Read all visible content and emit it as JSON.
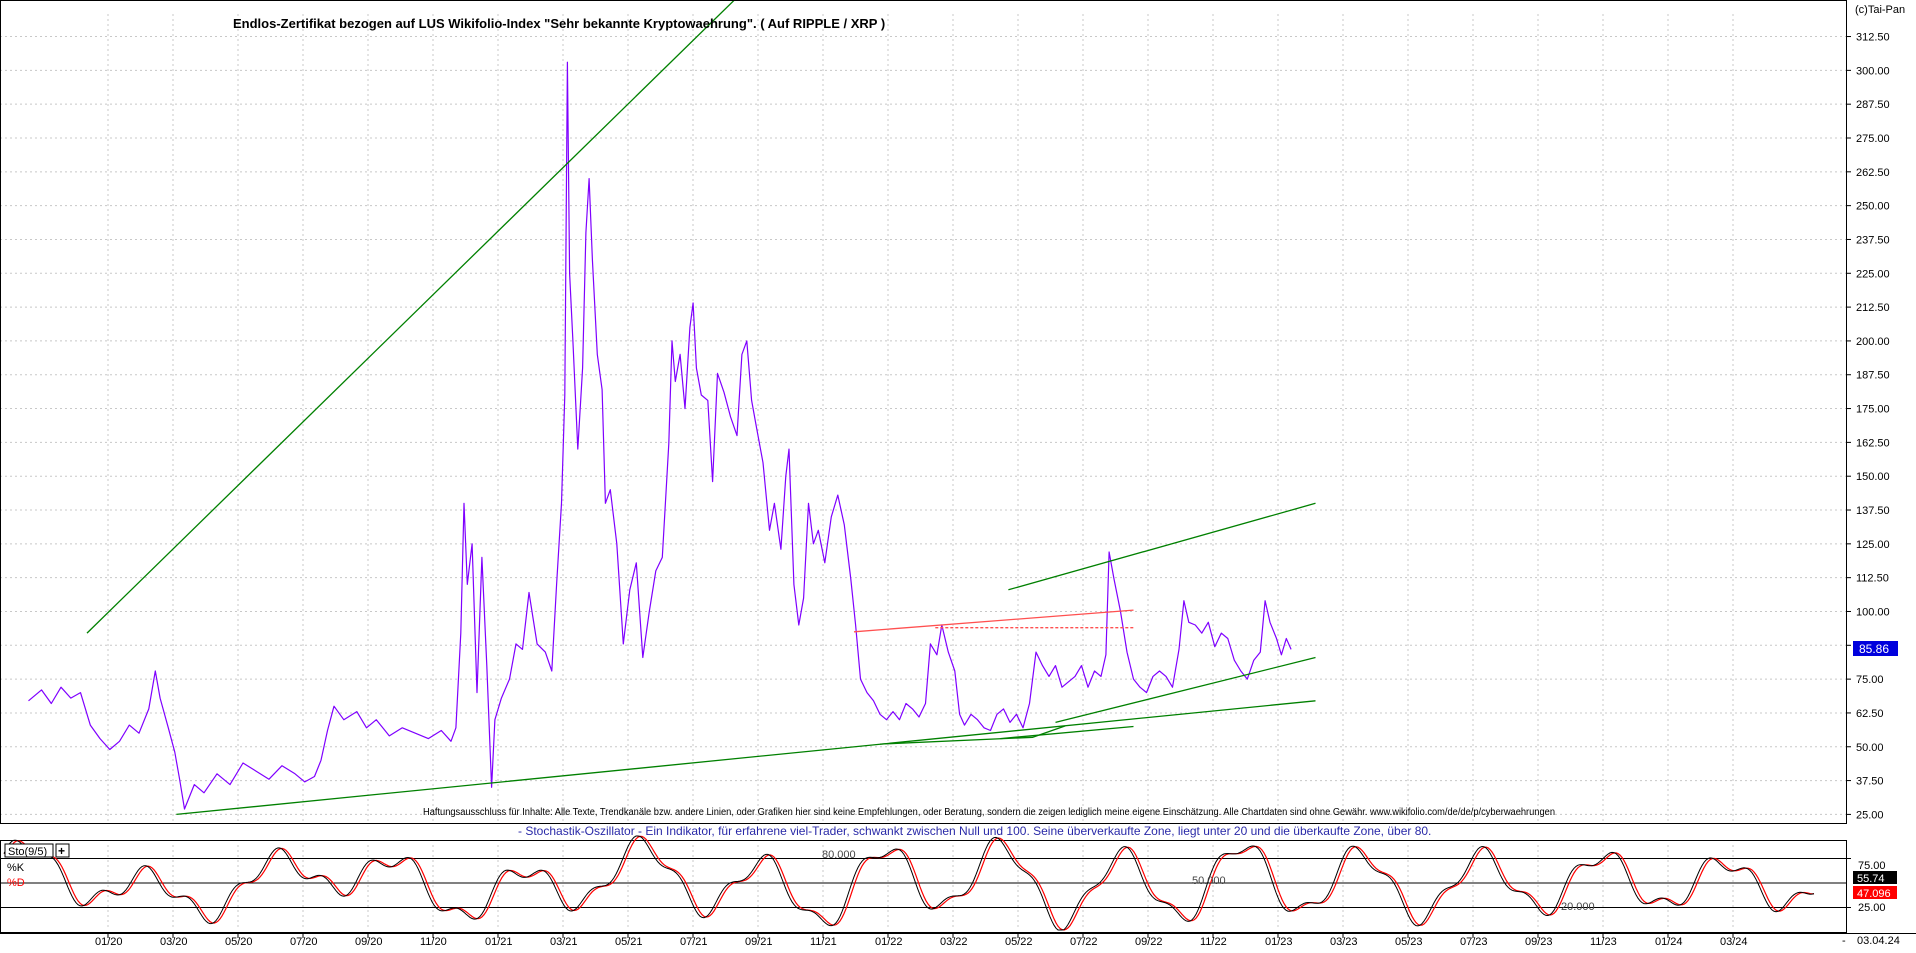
{
  "header": {
    "title": "Endlos-Zertifikat bezogen auf LUS Wikifolio-Index \"Sehr bekannte Kryptowaehrung\". ( Auf RIPPLE / XRP )",
    "copyright": "(c)Tai-Pan"
  },
  "notes": {
    "disclaimer": "Haftungsausschluss für Inhalte: Alle Texte, Trendkanäle bzw. andere Linien, oder Grafiken hier sind keine Empfehlungen, oder Beratung, sondern die zeigen lediglich meine eigene Einschätzung. Alle Chartdaten sind ohne Gewähr. www.wikifolio.com/de/de/p/cyberwaehrungen",
    "oscillator_description": "- Stochastik-Oszillator - Ein Indikator, für erfahrene viel-Trader, schwankt zwischen Null und 100. Seine überverkaufte Zone, liegt unter 20 und die überkaufte Zone, über 80."
  },
  "colors": {
    "price_line": "#7f00ff",
    "trend_line": "#008000",
    "resistance_line": "#ff5050",
    "last_price_bg": "#0000dd",
    "k_line": "#000000",
    "d_line": "#ff0000",
    "grid": "#c8c8c8"
  },
  "chart_data": [
    {
      "type": "line",
      "name": "price-chart",
      "title": "Endlos-Zertifikat bezogen auf LUS Wikifolio-Index \"Sehr bekannte Kryptowaehrung\". ( Auf RIPPLE / XRP )",
      "x_ticks": [
        "01/20",
        "03/20",
        "05/20",
        "07/20",
        "09/20",
        "11/20",
        "01/21",
        "03/21",
        "05/21",
        "07/21",
        "09/21",
        "11/21",
        "01/22",
        "03/22",
        "05/22",
        "07/22",
        "09/22",
        "11/22",
        "01/23",
        "03/23",
        "05/23",
        "07/23",
        "09/23",
        "11/23",
        "01/24",
        "03/24"
      ],
      "x_end_label": "03.04.24",
      "y_ticks": [
        "25.00",
        "37.50",
        "50.00",
        "62.50",
        "75.00",
        "87.50",
        "100.00",
        "112.50",
        "125.00",
        "137.50",
        "150.00",
        "162.50",
        "175.00",
        "187.50",
        "200.00",
        "212.50",
        "225.00",
        "237.50",
        "250.00",
        "262.50",
        "275.00",
        "287.50",
        "300.00",
        "312.50"
      ],
      "ylim": [
        20,
        320
      ],
      "grid": true,
      "last_value": "85.86",
      "series": [
        {
          "role": "price",
          "points": [
            [
              -2.2,
              67
            ],
            [
              -1.8,
              71
            ],
            [
              -1.5,
              66
            ],
            [
              -1.2,
              72
            ],
            [
              -0.9,
              68
            ],
            [
              -0.6,
              70
            ],
            [
              -0.3,
              58
            ],
            [
              0,
              53
            ],
            [
              0.3,
              49
            ],
            [
              0.6,
              52
            ],
            [
              0.9,
              58
            ],
            [
              1.2,
              55
            ],
            [
              1.5,
              64
            ],
            [
              1.7,
              78
            ],
            [
              1.85,
              68
            ],
            [
              2.1,
              57
            ],
            [
              2.3,
              48
            ],
            [
              2.45,
              38
            ],
            [
              2.6,
              27
            ],
            [
              2.9,
              36
            ],
            [
              3.2,
              33
            ],
            [
              3.6,
              40
            ],
            [
              4.0,
              36
            ],
            [
              4.4,
              44
            ],
            [
              4.8,
              41
            ],
            [
              5.2,
              38
            ],
            [
              5.6,
              43
            ],
            [
              6.0,
              40
            ],
            [
              6.3,
              37
            ],
            [
              6.6,
              39
            ],
            [
              6.8,
              45
            ],
            [
              7.0,
              56
            ],
            [
              7.2,
              65
            ],
            [
              7.5,
              60
            ],
            [
              7.9,
              63
            ],
            [
              8.2,
              57
            ],
            [
              8.5,
              60
            ],
            [
              8.9,
              54
            ],
            [
              9.3,
              57
            ],
            [
              9.7,
              55
            ],
            [
              10.1,
              53
            ],
            [
              10.5,
              56
            ],
            [
              10.8,
              52
            ],
            [
              10.95,
              57
            ],
            [
              11.1,
              92
            ],
            [
              11.2,
              140
            ],
            [
              11.3,
              110
            ],
            [
              11.45,
              125
            ],
            [
              11.6,
              70
            ],
            [
              11.75,
              120
            ],
            [
              11.9,
              80
            ],
            [
              12.0,
              50
            ],
            [
              12.05,
              35
            ],
            [
              12.15,
              60
            ],
            [
              12.35,
              68
            ],
            [
              12.6,
              75
            ],
            [
              12.8,
              88
            ],
            [
              13.0,
              86
            ],
            [
              13.2,
              107
            ],
            [
              13.45,
              88
            ],
            [
              13.7,
              85
            ],
            [
              13.9,
              78
            ],
            [
              14.05,
              110
            ],
            [
              14.2,
              140
            ],
            [
              14.3,
              180
            ],
            [
              14.38,
              303
            ],
            [
              14.45,
              225
            ],
            [
              14.55,
              200
            ],
            [
              14.7,
              160
            ],
            [
              14.85,
              190
            ],
            [
              14.95,
              240
            ],
            [
              15.05,
              260
            ],
            [
              15.15,
              230
            ],
            [
              15.3,
              195
            ],
            [
              15.45,
              182
            ],
            [
              15.55,
              140
            ],
            [
              15.7,
              145
            ],
            [
              15.9,
              125
            ],
            [
              16.1,
              88
            ],
            [
              16.3,
              108
            ],
            [
              16.5,
              118
            ],
            [
              16.7,
              83
            ],
            [
              16.9,
              100
            ],
            [
              17.1,
              115
            ],
            [
              17.3,
              120
            ],
            [
              17.5,
              162
            ],
            [
              17.6,
              200
            ],
            [
              17.7,
              185
            ],
            [
              17.85,
              195
            ],
            [
              18.0,
              175
            ],
            [
              18.15,
              205
            ],
            [
              18.25,
              214
            ],
            [
              18.35,
              190
            ],
            [
              18.5,
              180
            ],
            [
              18.7,
              178
            ],
            [
              18.85,
              148
            ],
            [
              19.0,
              188
            ],
            [
              19.2,
              181
            ],
            [
              19.4,
              172
            ],
            [
              19.6,
              165
            ],
            [
              19.75,
              195
            ],
            [
              19.9,
              200
            ],
            [
              20.05,
              178
            ],
            [
              20.2,
              168
            ],
            [
              20.4,
              155
            ],
            [
              20.6,
              130
            ],
            [
              20.75,
              140
            ],
            [
              20.95,
              123
            ],
            [
              21.1,
              150
            ],
            [
              21.2,
              160
            ],
            [
              21.35,
              110
            ],
            [
              21.5,
              95
            ],
            [
              21.65,
              105
            ],
            [
              21.8,
              140
            ],
            [
              21.95,
              125
            ],
            [
              22.1,
              130
            ],
            [
              22.3,
              118
            ],
            [
              22.5,
              135
            ],
            [
              22.7,
              143
            ],
            [
              22.9,
              132
            ],
            [
              23.1,
              112
            ],
            [
              23.25,
              95
            ],
            [
              23.4,
              75
            ],
            [
              23.6,
              70
            ],
            [
              23.8,
              67
            ],
            [
              24.0,
              62
            ],
            [
              24.2,
              60
            ],
            [
              24.4,
              63
            ],
            [
              24.6,
              60
            ],
            [
              24.8,
              66
            ],
            [
              25.0,
              64
            ],
            [
              25.2,
              61
            ],
            [
              25.4,
              66
            ],
            [
              25.55,
              88
            ],
            [
              25.75,
              84
            ],
            [
              25.9,
              95
            ],
            [
              26.1,
              85
            ],
            [
              26.3,
              78
            ],
            [
              26.45,
              62
            ],
            [
              26.6,
              58
            ],
            [
              26.8,
              62
            ],
            [
              27.0,
              60
            ],
            [
              27.2,
              57
            ],
            [
              27.4,
              56
            ],
            [
              27.6,
              62
            ],
            [
              27.8,
              64
            ],
            [
              28.0,
              59
            ],
            [
              28.2,
              62
            ],
            [
              28.4,
              57
            ],
            [
              28.6,
              66
            ],
            [
              28.8,
              85
            ],
            [
              29.0,
              80
            ],
            [
              29.2,
              76
            ],
            [
              29.4,
              80
            ],
            [
              29.6,
              72
            ],
            [
              29.8,
              74
            ],
            [
              30.0,
              76
            ],
            [
              30.2,
              80
            ],
            [
              30.4,
              72
            ],
            [
              30.6,
              78
            ],
            [
              30.8,
              76
            ],
            [
              30.95,
              84
            ],
            [
              31.05,
              122
            ],
            [
              31.2,
              112
            ],
            [
              31.4,
              100
            ],
            [
              31.6,
              85
            ],
            [
              31.8,
              75
            ],
            [
              32.0,
              72
            ],
            [
              32.2,
              70
            ],
            [
              32.4,
              76
            ],
            [
              32.6,
              78
            ],
            [
              32.8,
              76
            ],
            [
              33.0,
              72
            ],
            [
              33.2,
              86
            ],
            [
              33.35,
              104
            ],
            [
              33.5,
              96
            ],
            [
              33.7,
              95
            ],
            [
              33.9,
              92
            ],
            [
              34.1,
              96
            ],
            [
              34.3,
              87
            ],
            [
              34.5,
              92
            ],
            [
              34.7,
              90
            ],
            [
              34.9,
              82
            ],
            [
              35.1,
              78
            ],
            [
              35.3,
              75
            ],
            [
              35.5,
              82
            ],
            [
              35.7,
              85
            ],
            [
              35.85,
              104
            ],
            [
              36.0,
              96
            ],
            [
              36.2,
              90
            ],
            [
              36.35,
              84
            ],
            [
              36.5,
              90
            ],
            [
              36.65,
              86
            ]
          ]
        },
        {
          "role": "trend",
          "points": [
            [
              -0.4,
              92
            ],
            [
              20.2,
              334
            ]
          ]
        },
        {
          "role": "trend",
          "points": [
            [
              2.35,
              25
            ],
            [
              37.4,
              67
            ]
          ]
        },
        {
          "role": "trend",
          "points": [
            [
              29.4,
              59
            ],
            [
              37.4,
              83
            ]
          ]
        },
        {
          "role": "trend",
          "points": [
            [
              27.95,
              108
            ],
            [
              37.4,
              140
            ]
          ]
        },
        {
          "role": "trend",
          "points": [
            [
              24.0,
              51
            ],
            [
              28.7,
              53.5
            ],
            [
              29.7,
              57.7
            ]
          ]
        },
        {
          "role": "trend",
          "points": [
            [
              27.7,
              53
            ],
            [
              31.8,
              57.5
            ]
          ]
        },
        {
          "role": "resistance",
          "points": [
            [
              23.2,
              92.5
            ],
            [
              31.8,
              100.5
            ]
          ]
        },
        {
          "role": "resistance",
          "points": [
            [
              25.7,
              94
            ],
            [
              31.8,
              94
            ]
          ]
        }
      ]
    },
    {
      "type": "line",
      "name": "stochastic-oscillator",
      "label": "Sto(9/5)",
      "legend": [
        "%K",
        "%D"
      ],
      "y_ticks": [
        "25.00",
        "75.00"
      ],
      "level_labels": [
        "80.000",
        "50.000",
        "20.000"
      ],
      "ylim": [
        0,
        100
      ],
      "last_values": {
        "k": "55.74",
        "d": "47.096"
      },
      "cycles": [
        [
          -2,
          18,
          6,
          8
        ],
        [
          0,
          48,
          32,
          9
        ],
        [
          -1,
          52,
          65,
          8
        ],
        [
          -2,
          45,
          35,
          9
        ],
        [
          2,
          47,
          78,
          8
        ],
        [
          5,
          48,
          40,
          9
        ],
        [
          3,
          48,
          52,
          8
        ],
        [
          -2,
          50,
          58,
          9
        ]
      ]
    }
  ]
}
